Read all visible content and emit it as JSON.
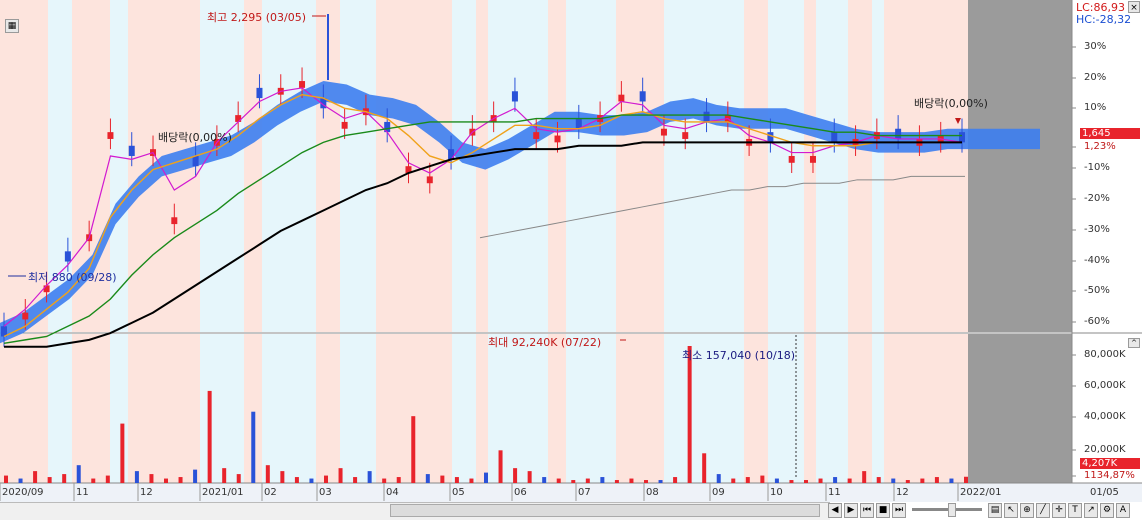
{
  "colors": {
    "up": "#e8242c",
    "down": "#2a52d8",
    "band_red": "#fde4dd",
    "band_blue": "#e6f6fb",
    "cloud": "#3d7ef0",
    "ma5": "#d21ad0",
    "ma20": "#f0a21a",
    "ma60": "#1a8a1a",
    "ma120": "#000000",
    "ma240": "#888888",
    "future": "#9b9b9b"
  },
  "top_right": {
    "lc": "LC:86,93",
    "hc": "HC:-28,32"
  },
  "price_axis": {
    "ticks": [
      "30%",
      "20%",
      "10%",
      "1,645",
      "1,23%",
      "-10%",
      "-20%",
      "-30%",
      "-40%",
      "-50%",
      "-60%"
    ]
  },
  "price_badge": "1,645",
  "volume_badge": "4,207K",
  "volume_axis": {
    "ticks": [
      "80,000K",
      "60,000K",
      "40,000K",
      "20,000K",
      "1134,87%"
    ]
  },
  "annotations": {
    "high": "최고 2,295 (03/05)",
    "low": "최저 880 (09/28)",
    "dividend": "배당락(0,00%)",
    "vol_max": "최대 92,240K (07/22)",
    "vol_min": "최소 157,040 (10/18)"
  },
  "x_axis": {
    "labels": [
      "2020/09",
      "11",
      "12",
      "2021/01",
      "02",
      "03",
      "04",
      "05",
      "06",
      "07",
      "08",
      "09",
      "10",
      "11",
      "12",
      "2022/01"
    ],
    "right_label": "01/05"
  },
  "chart_data": [
    {
      "type": "candlestick",
      "title": "",
      "x_range": [
        "2020/09",
        "2022/01"
      ],
      "y_unit": "price (%)",
      "annotations": [
        "최고 2,295 (03/05)",
        "최저 880 (09/28)",
        "배당락(0,00%)"
      ],
      "series": [
        {
          "name": "price",
          "values_pct": [
            -55,
            -48,
            -40,
            -33,
            -25,
            5,
            -2,
            0,
            -20,
            -5,
            3,
            10,
            15,
            18,
            20,
            12,
            8,
            12,
            5,
            -5,
            -8,
            -3,
            6,
            10,
            14,
            5,
            4,
            6,
            10,
            16,
            14,
            6,
            5,
            8,
            10,
            3,
            2,
            -2,
            -2,
            2,
            3,
            5,
            3,
            3,
            4,
            2
          ]
        },
        {
          "name": "MA5",
          "values_pct": [
            -52,
            -47,
            -40,
            -34,
            -26,
            -2,
            -3,
            -1,
            -12,
            -8,
            2,
            8,
            14,
            17,
            18,
            13,
            9,
            11,
            5,
            -4,
            -7,
            -3,
            5,
            9,
            12,
            6,
            5,
            6,
            9,
            14,
            13,
            7,
            6,
            8,
            9,
            4,
            2,
            -1,
            -1,
            1,
            2,
            4,
            3,
            3,
            3,
            2
          ]
        },
        {
          "name": "MA20",
          "values_pct": [
            -55,
            -52,
            -47,
            -42,
            -35,
            -20,
            -12,
            -6,
            -4,
            -2,
            0,
            4,
            9,
            13,
            16,
            15,
            12,
            11,
            9,
            4,
            -2,
            -4,
            -1,
            3,
            7,
            7,
            6,
            6,
            7,
            10,
            11,
            9,
            8,
            8,
            8,
            6,
            4,
            2,
            1,
            1,
            1,
            2,
            2,
            2,
            2,
            2
          ]
        },
        {
          "name": "MA60",
          "values_pct": [
            -57,
            -56,
            -55,
            -52,
            -49,
            -44,
            -37,
            -31,
            -26,
            -22,
            -18,
            -13,
            -9,
            -5,
            -1,
            2,
            4,
            5,
            6,
            7,
            8,
            8,
            8,
            8,
            8,
            9,
            9,
            9,
            9,
            10,
            10,
            10,
            10,
            10,
            10,
            9,
            8,
            7,
            6,
            5,
            5,
            4,
            4,
            4,
            4,
            4
          ]
        },
        {
          "name": "MA120",
          "values_pct": [
            -58,
            -58,
            -58,
            -57,
            -56,
            -54,
            -51,
            -48,
            -44,
            -40,
            -36,
            -32,
            -28,
            -24,
            -21,
            -18,
            -15,
            -12,
            -10,
            -7,
            -5,
            -3,
            -2,
            -1,
            0,
            0,
            0,
            1,
            1,
            1,
            2,
            2,
            2,
            2,
            2,
            2,
            2,
            2,
            2,
            2,
            2,
            2,
            2,
            2,
            2,
            2
          ]
        },
        {
          "name": "MA240",
          "values_pct": [
            -26,
            -25,
            -24,
            -23,
            -22,
            -21,
            -20,
            -19,
            -18,
            -17,
            -16,
            -15,
            -14,
            -13,
            -12,
            -12,
            -11,
            -11,
            -10,
            -10,
            -10,
            -9,
            -9,
            -9,
            -8,
            -8,
            -8,
            -8
          ]
        }
      ]
    },
    {
      "type": "bar",
      "title": "",
      "y_unit": "K",
      "ylim": [
        0,
        92240
      ],
      "annotations": [
        "최대 92,240K (07/22)",
        "최소 157,040 (10/18)"
      ],
      "x_month_positions": [
        "2020/09",
        "11",
        "12",
        "2021/01",
        "02",
        "03",
        "04",
        "05",
        "06",
        "07",
        "08",
        "09",
        "10",
        "11",
        "12",
        "2022/01"
      ],
      "values_k": [
        5000,
        3000,
        8000,
        4000,
        6000,
        12000,
        3000,
        5000,
        40000,
        8000,
        6000,
        3000,
        4000,
        9000,
        62000,
        10000,
        6000,
        48000,
        12000,
        8000,
        4000,
        3000,
        5000,
        10000,
        4000,
        8000,
        3000,
        4000,
        45000,
        6000,
        5000,
        4000,
        3000,
        7000,
        22000,
        10000,
        8000,
        4000,
        3000,
        2000,
        3000,
        4000,
        2000,
        3000,
        2000,
        2000,
        4000,
        92240,
        20000,
        6000,
        3000,
        4000,
        5000,
        3000,
        2000,
        2000,
        3000,
        4000,
        3000,
        8000,
        4000,
        3000,
        2000,
        3000,
        4000,
        3000,
        4207
      ]
    }
  ]
}
